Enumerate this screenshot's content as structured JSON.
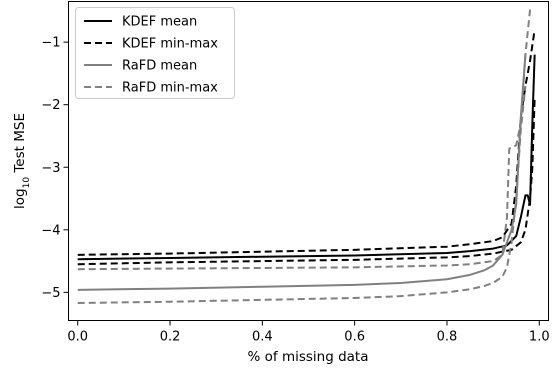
{
  "chart_data": {
    "type": "line",
    "xlabel": "% of missing data",
    "ylabel_main": "log",
    "ylabel_sub": "10",
    "ylabel_rest": " Test MSE",
    "xlim": [
      -0.02,
      1.02
    ],
    "ylim": [
      -5.45,
      -0.35
    ],
    "xticks": [
      0.0,
      0.2,
      0.4,
      0.6,
      0.8,
      1.0
    ],
    "xtick_labels": [
      "0.0",
      "0.2",
      "0.4",
      "0.6",
      "0.8",
      "1.0"
    ],
    "yticks": [
      -1,
      -2,
      -3,
      -4,
      -5
    ],
    "ytick_labels": [
      "−1",
      "−2",
      "−3",
      "−4",
      "−5"
    ],
    "legend_position": "top-left",
    "series": [
      {
        "name": "KDEF mean",
        "color": "#000000",
        "style": "solid",
        "x": [
          0.0,
          0.2,
          0.4,
          0.6,
          0.8,
          0.85,
          0.9,
          0.93,
          0.95,
          0.96,
          0.97,
          0.975,
          0.98,
          0.985,
          0.99
        ],
        "y": [
          -4.47,
          -4.45,
          -4.43,
          -4.41,
          -4.37,
          -4.34,
          -4.3,
          -4.25,
          -4.1,
          -3.8,
          -3.45,
          -3.45,
          -3.6,
          -2.3,
          -1.2
        ]
      },
      {
        "name": "KDEF min-max",
        "color": "#000000",
        "style": "dashed",
        "x": [
          0.0,
          0.2,
          0.4,
          0.6,
          0.8,
          0.85,
          0.9,
          0.92,
          0.94,
          0.95,
          0.96,
          0.97,
          0.98,
          0.99
        ],
        "y": [
          -4.4,
          -4.38,
          -4.35,
          -4.32,
          -4.27,
          -4.23,
          -4.18,
          -4.12,
          -3.9,
          -3.3,
          -2.2,
          -1.7,
          -1.3,
          -0.8
        ]
      },
      {
        "name": "KDEF min-max lower",
        "color": "#000000",
        "style": "dashed",
        "x": [
          0.0,
          0.2,
          0.4,
          0.6,
          0.8,
          0.85,
          0.9,
          0.94,
          0.96,
          0.97,
          0.98,
          0.985,
          0.99
        ],
        "y": [
          -4.55,
          -4.52,
          -4.5,
          -4.48,
          -4.44,
          -4.42,
          -4.38,
          -4.32,
          -4.2,
          -4.0,
          -3.5,
          -3.0,
          -1.9
        ]
      },
      {
        "name": "RaFD mean",
        "color": "#808080",
        "style": "solid",
        "x": [
          0.0,
          0.2,
          0.4,
          0.6,
          0.7,
          0.8,
          0.85,
          0.88,
          0.9,
          0.92,
          0.94,
          0.95,
          0.96,
          0.97
        ],
        "y": [
          -4.96,
          -4.94,
          -4.91,
          -4.88,
          -4.85,
          -4.79,
          -4.72,
          -4.65,
          -4.57,
          -4.4,
          -4.0,
          -3.6,
          -2.2,
          -1.2
        ]
      },
      {
        "name": "RaFD min-max",
        "color": "#808080",
        "style": "dashed",
        "x": [
          0.0,
          0.2,
          0.4,
          0.6,
          0.8,
          0.85,
          0.9,
          0.92,
          0.93,
          0.935,
          0.95,
          0.96,
          0.97,
          0.98
        ],
        "y": [
          -4.63,
          -4.62,
          -4.61,
          -4.6,
          -4.57,
          -4.55,
          -4.5,
          -4.4,
          -3.8,
          -2.7,
          -2.65,
          -2.3,
          -1.2,
          -0.48
        ]
      },
      {
        "name": "RaFD min-max lower",
        "color": "#808080",
        "style": "dashed",
        "x": [
          0.0,
          0.2,
          0.4,
          0.6,
          0.7,
          0.8,
          0.85,
          0.88,
          0.9,
          0.92,
          0.93,
          0.94,
          0.95,
          0.96,
          0.97
        ],
        "y": [
          -5.17,
          -5.15,
          -5.12,
          -5.09,
          -5.06,
          -5.0,
          -4.95,
          -4.9,
          -4.85,
          -4.75,
          -4.6,
          -4.2,
          -3.5,
          -2.4,
          -1.7
        ]
      }
    ],
    "legend": [
      {
        "label": "KDEF mean",
        "color": "#000000",
        "style": "solid"
      },
      {
        "label": "KDEF min-max",
        "color": "#000000",
        "style": "dashed"
      },
      {
        "label": "RaFD mean",
        "color": "#808080",
        "style": "solid"
      },
      {
        "label": "RaFD min-max",
        "color": "#808080",
        "style": "dashed"
      }
    ]
  }
}
